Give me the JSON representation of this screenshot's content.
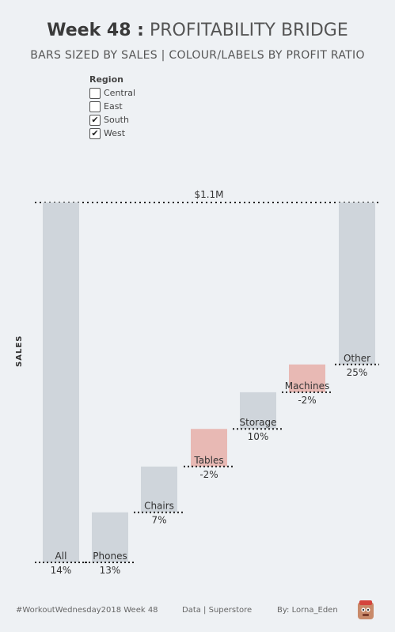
{
  "header": {
    "title_bold": "Week 48 :",
    "title_light": "PROFITABILITY BRIDGE",
    "subtitle": "BARS SIZED BY SALES | COLOUR/LABELS BY PROFIT RATIO"
  },
  "legend": {
    "title": "Region",
    "items": [
      {
        "label": "Central",
        "checked": false
      },
      {
        "label": "East",
        "checked": false
      },
      {
        "label": "South",
        "checked": true
      },
      {
        "label": "West",
        "checked": true
      }
    ]
  },
  "colors": {
    "positive": "#cfd5db",
    "negative": "#e8b9b4",
    "background": "#eef1f4"
  },
  "footer": {
    "hashtag": "#WorkoutWednesday2018 Week 48",
    "data": "Data | Superstore",
    "author": "By: Lorna_Eden"
  },
  "chart_data": {
    "type": "bar",
    "subtype": "waterfall",
    "ylabel": "SALES",
    "total_label": "$1.1M",
    "ylim": [
      0,
      1.1
    ],
    "y_unit": "$M",
    "categories": [
      "All",
      "Phones",
      "Chairs",
      "Tables",
      "Storage",
      "Machines",
      "Other"
    ],
    "bars": [
      {
        "name": "All",
        "start": 0,
        "end": 1.1,
        "profit_ratio": "14%",
        "sign": "positive"
      },
      {
        "name": "Phones",
        "start": 0,
        "end": 0.153,
        "profit_ratio": "13%",
        "sign": "positive"
      },
      {
        "name": "Chairs",
        "start": 0.153,
        "end": 0.293,
        "profit_ratio": "7%",
        "sign": "positive"
      },
      {
        "name": "Tables",
        "start": 0.293,
        "end": 0.408,
        "profit_ratio": "-2%",
        "sign": "negative"
      },
      {
        "name": "Storage",
        "start": 0.408,
        "end": 0.52,
        "profit_ratio": "10%",
        "sign": "positive"
      },
      {
        "name": "Machines",
        "start": 0.52,
        "end": 0.605,
        "profit_ratio": "-2%",
        "sign": "negative"
      },
      {
        "name": "Other",
        "start": 0.605,
        "end": 1.1,
        "profit_ratio": "25%",
        "sign": "positive"
      }
    ]
  }
}
